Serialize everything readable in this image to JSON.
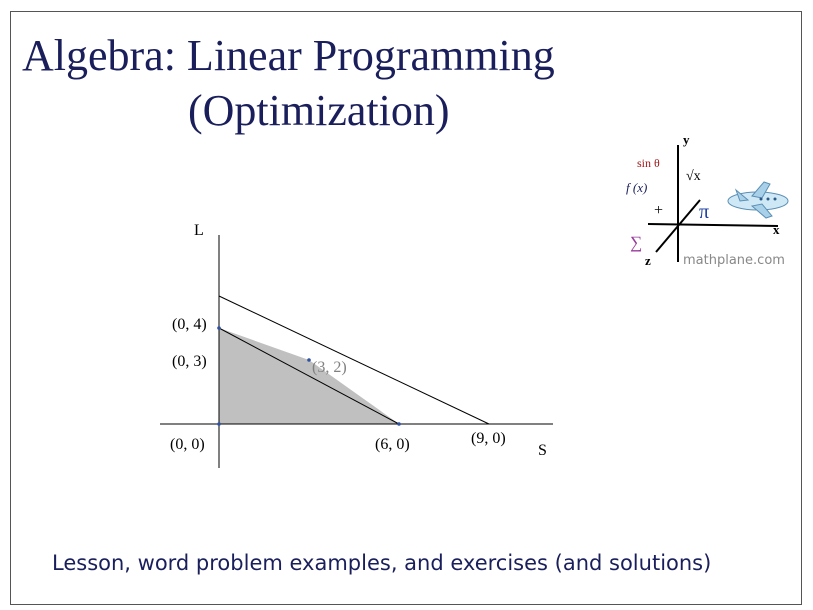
{
  "title": {
    "line1": "Algebra: Linear Programming",
    "line2": "(Optimization)"
  },
  "subtitle": "Lesson, word problem examples, and exercises (and solutions)",
  "graph": {
    "x_axis_label": "S",
    "y_axis_label": "L",
    "points": [
      {
        "label": "(0, 4)",
        "x": 0,
        "y": 4
      },
      {
        "label": "(0, 3)",
        "x": 0,
        "y": 3
      },
      {
        "label": "(0, 0)",
        "x": 0,
        "y": 0
      },
      {
        "label": "(6, 0)",
        "x": 6,
        "y": 0
      },
      {
        "label": "(9, 0)",
        "x": 9,
        "y": 0
      },
      {
        "label": "(3, 2)",
        "x": 3,
        "y": 2
      }
    ],
    "lines": [
      {
        "from": [
          0,
          4
        ],
        "to": [
          9,
          0
        ]
      },
      {
        "from": [
          0,
          3
        ],
        "to": [
          6,
          0
        ]
      }
    ],
    "feasible_region": [
      [
        0,
        0
      ],
      [
        0,
        3
      ],
      [
        3,
        2
      ],
      [
        6,
        0
      ]
    ],
    "colors": {
      "region": "#c0c0c0",
      "axis": "#000000",
      "vertex": "#3050a0"
    }
  },
  "logo": {
    "axis_x": "x",
    "axis_y": "y",
    "axis_z": "z",
    "sin": "sin θ",
    "fx": "f (x)",
    "sqrt": "√x",
    "plus": "+",
    "pi": "π",
    "sigma": "∑",
    "site": "mathplane.com",
    "airplane_icon": "airplane-icon"
  }
}
